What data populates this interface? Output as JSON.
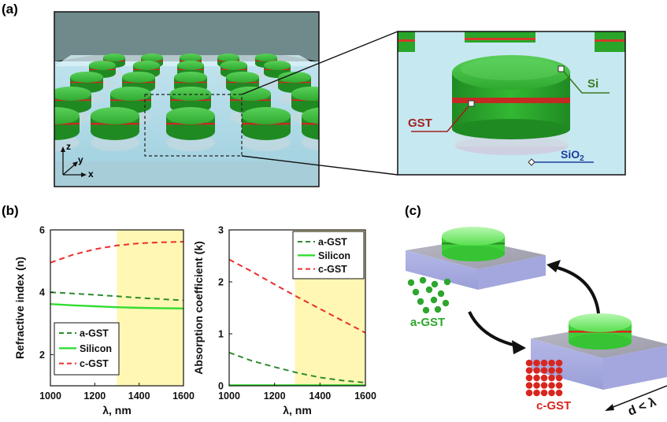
{
  "panels": {
    "a": "(a)",
    "b": "(b)",
    "c": "(c)"
  },
  "panel_a": {
    "axes": {
      "z": "z",
      "y": "y",
      "x": "x"
    },
    "labels": {
      "si": "Si",
      "gst": "GST",
      "sio2_main": "SiO",
      "sio2_sub": "2"
    },
    "colors": {
      "disk": "#3fb83a",
      "gst_layer": "#d43a2a",
      "substrate": "#bfe6f0",
      "background": "#6f8a8a"
    }
  },
  "panel_c": {
    "labels": {
      "a_gst": "a-GST",
      "c_gst": "c-GST",
      "period": "d < λ"
    },
    "colors": {
      "a_gst": "#2ea62e",
      "c_gst": "#d8261f"
    }
  },
  "chart_data": [
    {
      "type": "line",
      "title": "",
      "xlabel": "λ, nm",
      "ylabel": "Refractive index (n)",
      "xlim": [
        1000,
        1600
      ],
      "ylim": [
        1,
        6
      ],
      "xticks": [
        "1000",
        "1200",
        "1400",
        "1600"
      ],
      "yticks": [
        "2",
        "4",
        "6"
      ],
      "highlight": {
        "x_start": 1300,
        "x_end": 1600,
        "color": "#fff7b3"
      },
      "grid": false,
      "legend_position": "lower-left",
      "x": [
        1000,
        1100,
        1200,
        1300,
        1400,
        1500,
        1600
      ],
      "series": [
        {
          "name": "a-GST",
          "style": "dashed",
          "color": "#2e8b2e",
          "values": [
            4.0,
            3.96,
            3.92,
            3.87,
            3.82,
            3.78,
            3.74
          ]
        },
        {
          "name": "Silicon",
          "style": "solid",
          "color": "#33dd33",
          "values": [
            3.62,
            3.58,
            3.55,
            3.52,
            3.5,
            3.49,
            3.48
          ]
        },
        {
          "name": "c-GST",
          "style": "dashed",
          "color": "#ee2d2d",
          "values": [
            4.95,
            5.2,
            5.38,
            5.5,
            5.57,
            5.6,
            5.62
          ]
        }
      ]
    },
    {
      "type": "line",
      "title": "",
      "xlabel": "λ, nm",
      "ylabel": "Absorption coefficient (k)",
      "xlim": [
        1000,
        1600
      ],
      "ylim": [
        0,
        3
      ],
      "xticks": [
        "1000",
        "1200",
        "1400",
        "1600"
      ],
      "yticks": [
        "0",
        "1",
        "2",
        "3"
      ],
      "highlight": {
        "x_start": 1290,
        "x_end": 1600,
        "color": "#fff7b3"
      },
      "grid": false,
      "legend_position": "top-right",
      "x": [
        1000,
        1100,
        1200,
        1300,
        1400,
        1500,
        1600
      ],
      "series": [
        {
          "name": "a-GST",
          "style": "dashed",
          "color": "#2e8b2e",
          "values": [
            0.64,
            0.48,
            0.36,
            0.25,
            0.16,
            0.1,
            0.06
          ]
        },
        {
          "name": "Silicon",
          "style": "solid",
          "color": "#33dd33",
          "values": [
            0.01,
            0.01,
            0.01,
            0.01,
            0.01,
            0.01,
            0.01
          ]
        },
        {
          "name": "c-GST",
          "style": "dashed",
          "color": "#ee2d2d",
          "values": [
            2.43,
            2.2,
            1.95,
            1.71,
            1.48,
            1.25,
            1.02
          ]
        }
      ]
    }
  ]
}
